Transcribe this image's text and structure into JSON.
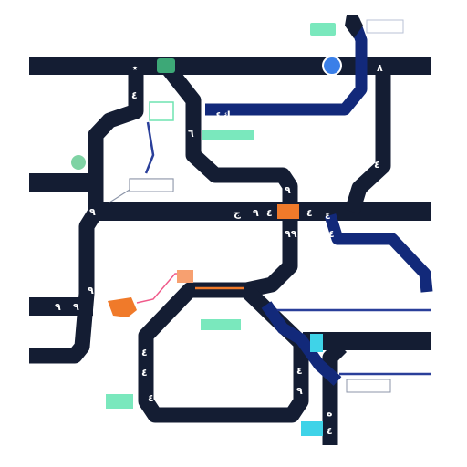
{
  "map": {
    "colors": {
      "route_dark": "#141d33",
      "route_blue": "#12297a",
      "accent_green": "#6ee4b0",
      "accent_orange": "#f07a2a",
      "accent_teal": "#37c8e0",
      "leader_pink": "#f05a8a"
    },
    "icons": [
      "pin-marker-icon",
      "tree-icon",
      "green-marker-icon",
      "blue-circle-icon",
      "orange-square-icon",
      "orange-flame-icon"
    ]
  }
}
